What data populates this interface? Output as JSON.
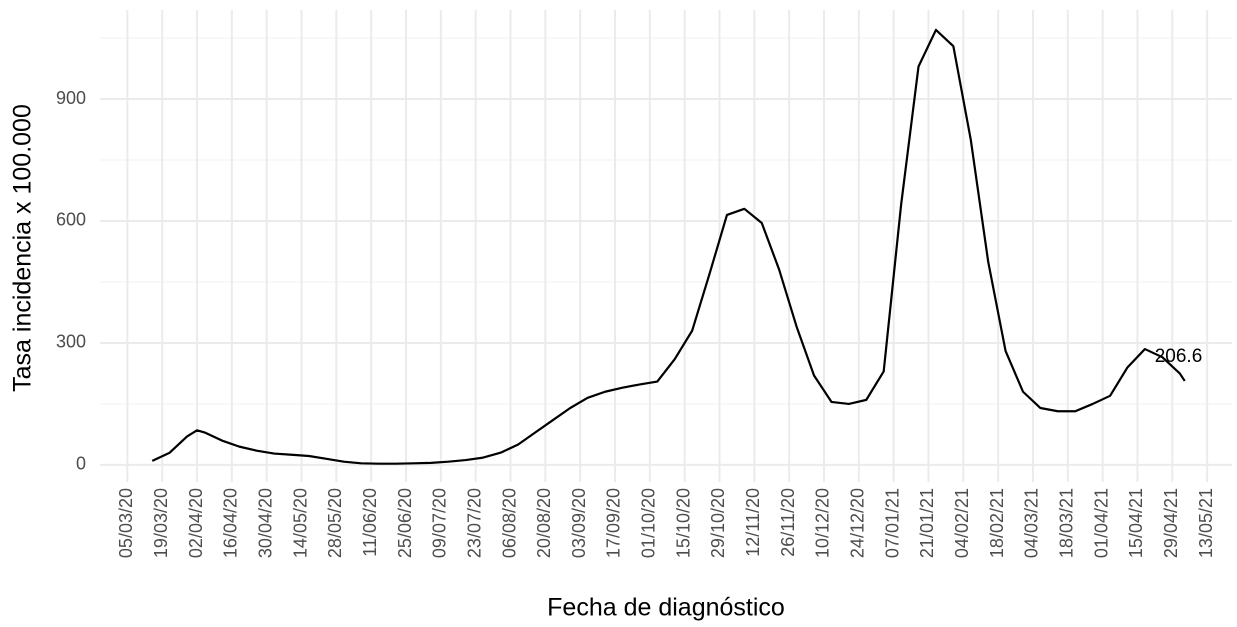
{
  "chart_data": {
    "type": "line",
    "x_label": "Fecha de diagnóstico",
    "y_label": "Tasa incidencia x 100.000",
    "end_label": "206.6",
    "color": "#000000",
    "grid": true,
    "x": [
      "2020-03-15",
      "2020-03-22",
      "2020-03-29",
      "2020-04-02",
      "2020-04-05",
      "2020-04-12",
      "2020-04-19",
      "2020-04-26",
      "2020-05-03",
      "2020-05-10",
      "2020-05-17",
      "2020-05-24",
      "2020-05-31",
      "2020-06-07",
      "2020-06-14",
      "2020-06-21",
      "2020-06-28",
      "2020-07-05",
      "2020-07-12",
      "2020-07-19",
      "2020-07-26",
      "2020-08-02",
      "2020-08-09",
      "2020-08-16",
      "2020-08-23",
      "2020-08-30",
      "2020-09-06",
      "2020-09-13",
      "2020-09-20",
      "2020-09-27",
      "2020-10-04",
      "2020-10-11",
      "2020-10-18",
      "2020-10-25",
      "2020-11-01",
      "2020-11-08",
      "2020-11-15",
      "2020-11-22",
      "2020-11-29",
      "2020-12-06",
      "2020-12-13",
      "2020-12-20",
      "2020-12-27",
      "2021-01-03",
      "2021-01-10",
      "2021-01-17",
      "2021-01-24",
      "2021-01-31",
      "2021-02-07",
      "2021-02-14",
      "2021-02-21",
      "2021-02-28",
      "2021-03-07",
      "2021-03-14",
      "2021-03-21",
      "2021-03-28",
      "2021-04-04",
      "2021-04-11",
      "2021-04-18",
      "2021-04-25",
      "2021-05-02",
      "2021-05-04"
    ],
    "values": [
      10,
      30,
      70,
      85,
      80,
      60,
      45,
      35,
      28,
      25,
      22,
      15,
      8,
      4,
      3,
      3,
      4,
      5,
      8,
      12,
      18,
      30,
      50,
      80,
      110,
      140,
      165,
      180,
      190,
      198,
      205,
      260,
      330,
      470,
      615,
      630,
      595,
      480,
      340,
      220,
      155,
      150,
      160,
      230,
      640,
      980,
      1070,
      1030,
      800,
      500,
      280,
      180,
      140,
      132,
      132,
      150,
      170,
      240,
      285,
      265,
      225,
      206.6
    ],
    "xlim": [
      "2020-02-23",
      "2021-05-23"
    ],
    "xticks": [
      {
        "value": "2020-03-05",
        "label": "05/03/20"
      },
      {
        "value": "2020-03-19",
        "label": "19/03/20"
      },
      {
        "value": "2020-04-02",
        "label": "02/04/20"
      },
      {
        "value": "2020-04-16",
        "label": "16/04/20"
      },
      {
        "value": "2020-04-30",
        "label": "30/04/20"
      },
      {
        "value": "2020-05-14",
        "label": "14/05/20"
      },
      {
        "value": "2020-05-28",
        "label": "28/05/20"
      },
      {
        "value": "2020-06-11",
        "label": "11/06/20"
      },
      {
        "value": "2020-06-25",
        "label": "25/06/20"
      },
      {
        "value": "2020-07-09",
        "label": "09/07/20"
      },
      {
        "value": "2020-07-23",
        "label": "23/07/20"
      },
      {
        "value": "2020-08-06",
        "label": "06/08/20"
      },
      {
        "value": "2020-08-20",
        "label": "20/08/20"
      },
      {
        "value": "2020-09-03",
        "label": "03/09/20"
      },
      {
        "value": "2020-09-17",
        "label": "17/09/20"
      },
      {
        "value": "2020-10-01",
        "label": "01/10/20"
      },
      {
        "value": "2020-10-15",
        "label": "15/10/20"
      },
      {
        "value": "2020-10-29",
        "label": "29/10/20"
      },
      {
        "value": "2020-11-12",
        "label": "12/11/20"
      },
      {
        "value": "2020-11-26",
        "label": "26/11/20"
      },
      {
        "value": "2020-12-10",
        "label": "10/12/20"
      },
      {
        "value": "2020-12-24",
        "label": "24/12/20"
      },
      {
        "value": "2021-01-07",
        "label": "07/01/21"
      },
      {
        "value": "2021-01-21",
        "label": "21/01/21"
      },
      {
        "value": "2021-02-04",
        "label": "04/02/21"
      },
      {
        "value": "2021-02-18",
        "label": "18/02/21"
      },
      {
        "value": "2021-03-04",
        "label": "04/03/21"
      },
      {
        "value": "2021-03-18",
        "label": "18/03/21"
      },
      {
        "value": "2021-04-01",
        "label": "01/04/21"
      },
      {
        "value": "2021-04-15",
        "label": "15/04/21"
      },
      {
        "value": "2021-04-29",
        "label": "29/04/21"
      },
      {
        "value": "2021-05-13",
        "label": "13/05/21"
      }
    ],
    "ylim": [
      -42,
      1119
    ],
    "yticks": [
      0,
      300,
      600,
      900
    ],
    "y_minor_ticks": [
      150,
      450,
      750,
      1050
    ]
  }
}
